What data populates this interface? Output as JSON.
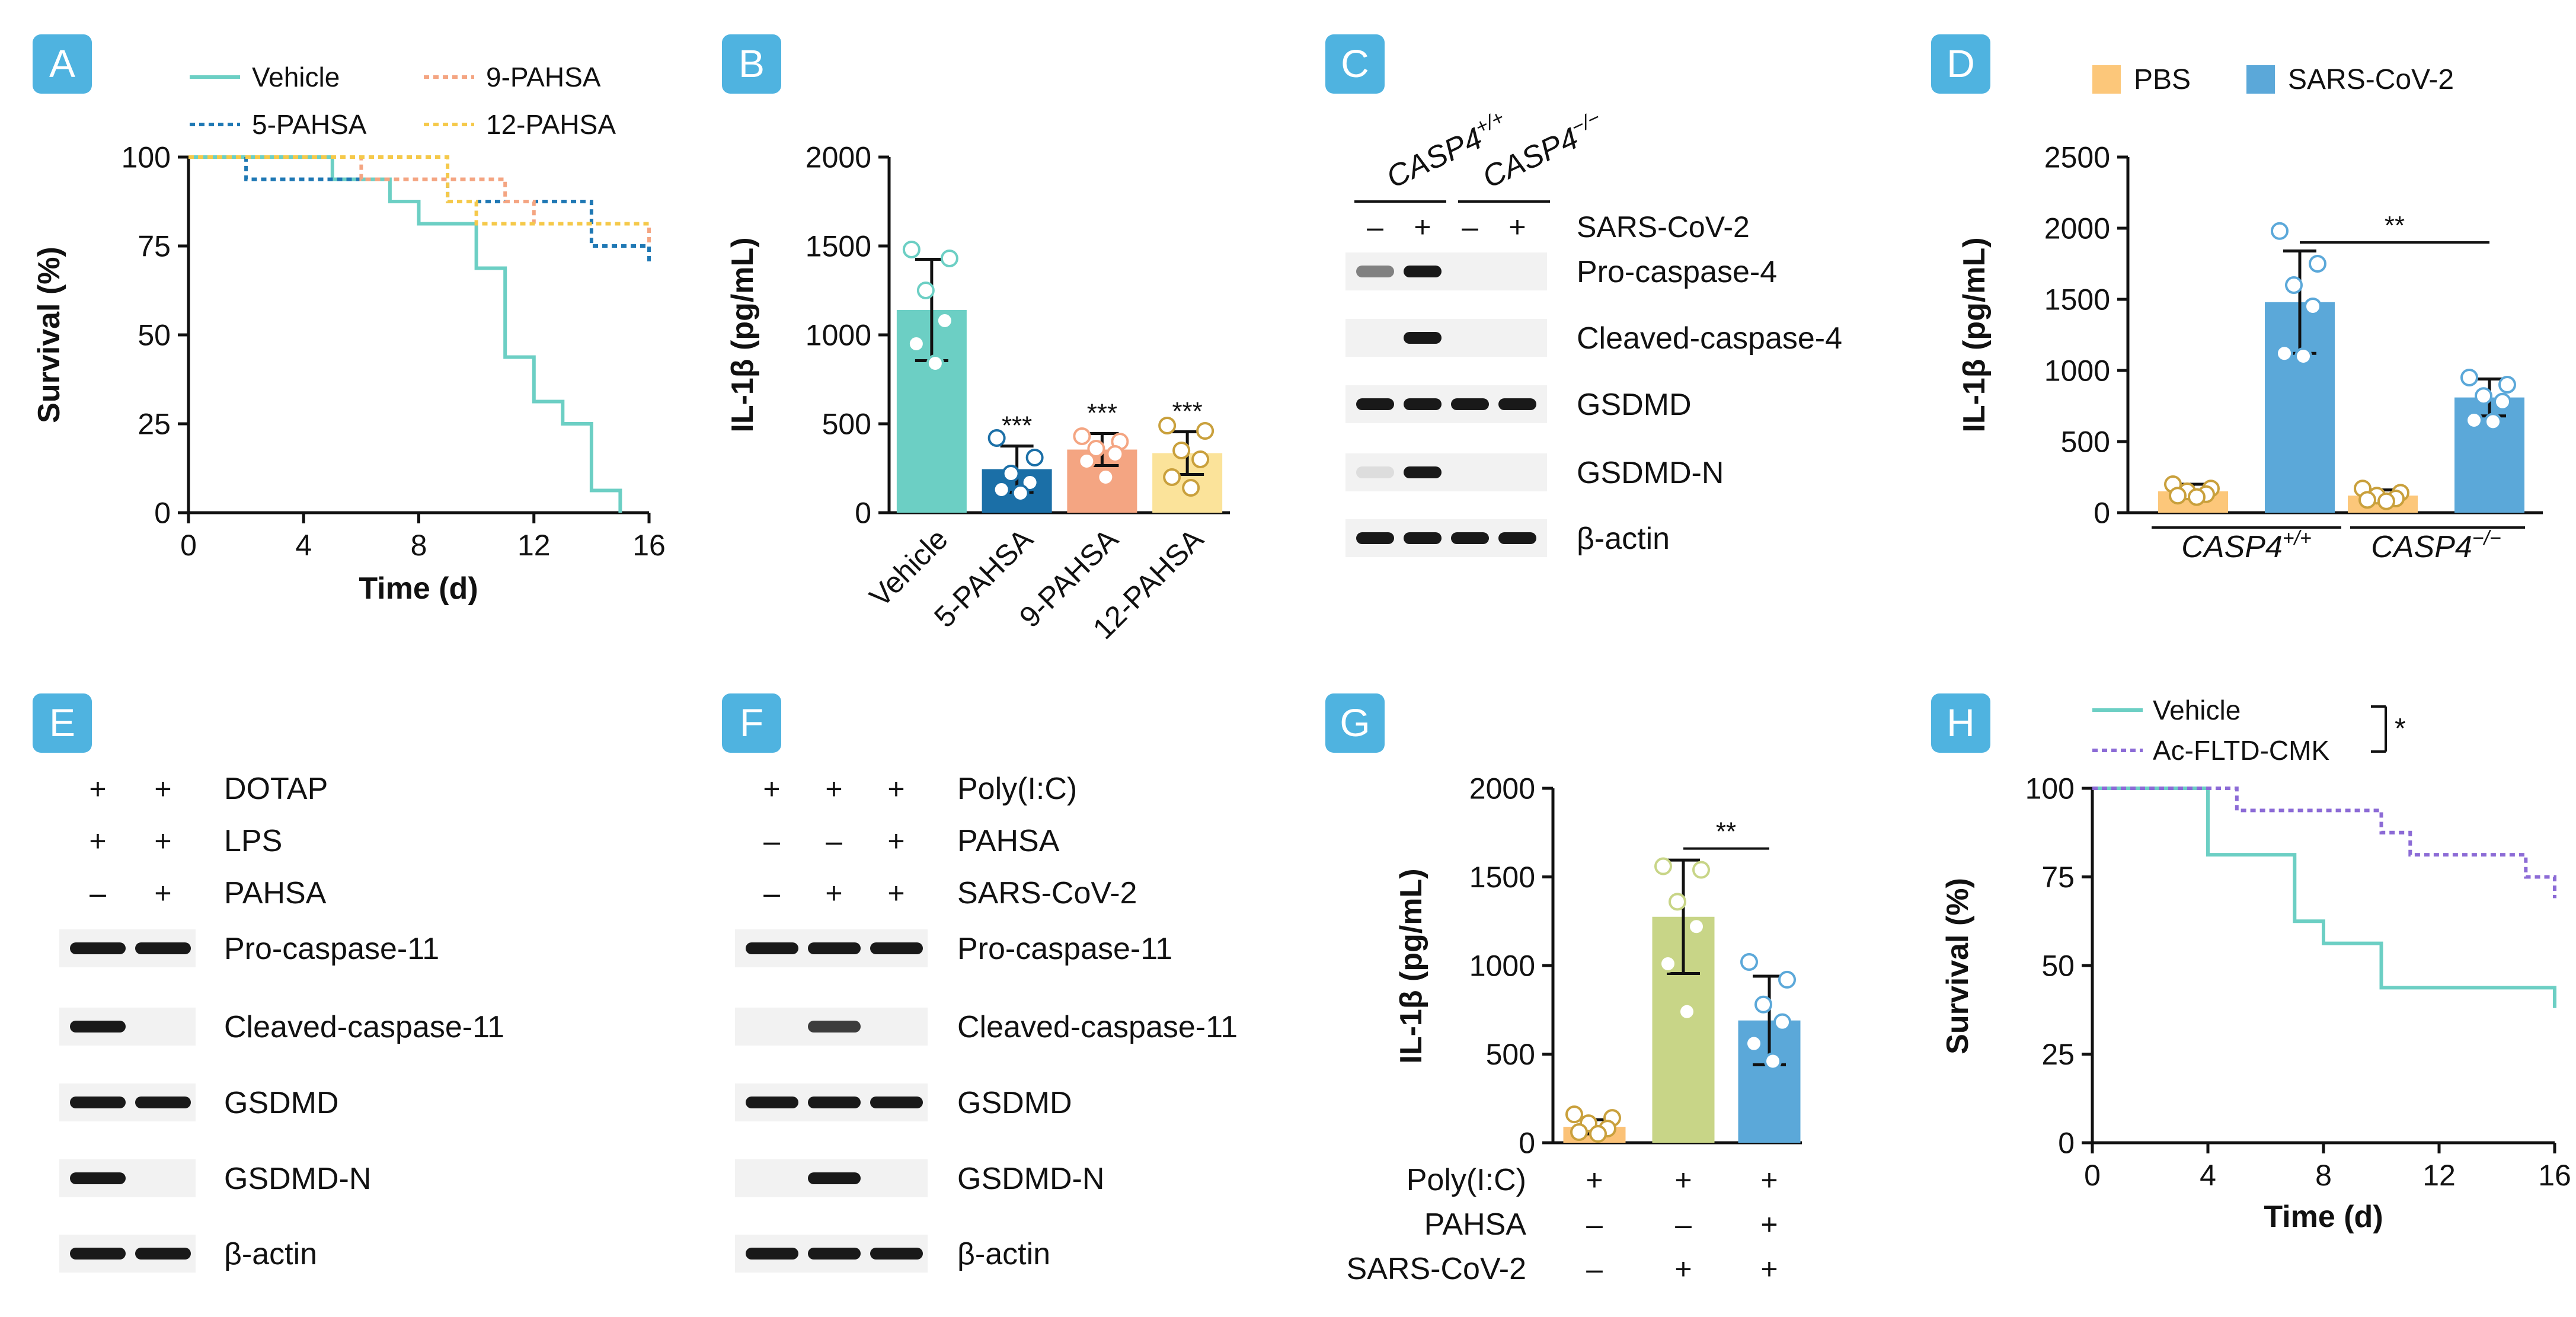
{
  "colors": {
    "teal": "#6ccfc4",
    "blue": "#1f78b4",
    "salmon": "#f4a582",
    "yellow": "#fbe39a",
    "dark_blue": "#1b6fa7",
    "pbs": "#fcc77a",
    "sars": "#5ba8d9",
    "poly": "#fbc277",
    "green": "#c8d587",
    "purple": "#8c6bd6",
    "badge": "#4fb3e0"
  },
  "panels": {
    "A": {
      "badge": "A",
      "chart_data": {
        "type": "line",
        "title": "",
        "xlabel": "Time (d)",
        "ylabel": "Survival (%)",
        "xlim": [
          0,
          16
        ],
        "ylim": [
          0,
          100
        ],
        "xticks": [
          "0",
          "4",
          "8",
          "12",
          "16"
        ],
        "yticks": [
          "0",
          "25",
          "50",
          "75",
          "100"
        ],
        "legend_position": "top",
        "series": [
          {
            "name": "Vehicle",
            "style": "solid",
            "color": "#6ccfc4",
            "steps": [
              [
                0,
                100
              ],
              [
                5,
                100
              ],
              [
                5,
                93.75
              ],
              [
                7,
                93.75
              ],
              [
                7,
                87.5
              ],
              [
                8,
                87.5
              ],
              [
                8,
                81.25
              ],
              [
                10,
                81.25
              ],
              [
                10,
                68.75
              ],
              [
                11,
                68.75
              ],
              [
                11,
                43.75
              ],
              [
                12,
                43.75
              ],
              [
                12,
                31.25
              ],
              [
                13,
                31.25
              ],
              [
                13,
                25
              ],
              [
                14,
                25
              ],
              [
                14,
                6.25
              ],
              [
                15,
                6.25
              ],
              [
                15,
                0
              ]
            ]
          },
          {
            "name": "5-PAHSA",
            "style": "dotted",
            "color": "#1f78b4",
            "steps": [
              [
                0,
                100
              ],
              [
                2,
                100
              ],
              [
                2,
                93.75
              ],
              [
                9,
                93.75
              ],
              [
                9,
                87.5
              ],
              [
                14,
                87.5
              ],
              [
                14,
                75
              ],
              [
                16,
                75
              ],
              [
                16,
                70
              ]
            ]
          },
          {
            "name": "9-PAHSA",
            "style": "dotted",
            "color": "#f4a582",
            "steps": [
              [
                0,
                100
              ],
              [
                6,
                100
              ],
              [
                6,
                93.75
              ],
              [
                11,
                93.75
              ],
              [
                11,
                87.5
              ],
              [
                12,
                87.5
              ],
              [
                12,
                81.25
              ],
              [
                16,
                81.25
              ],
              [
                16,
                76
              ]
            ]
          },
          {
            "name": "12-PAHSA",
            "style": "dotted",
            "color": "#f5c94a",
            "steps": [
              [
                0,
                100
              ],
              [
                9,
                100
              ],
              [
                9,
                87.5
              ],
              [
                10,
                87.5
              ],
              [
                10,
                81.25
              ],
              [
                16,
                81.25
              ]
            ]
          }
        ]
      }
    },
    "B": {
      "badge": "B",
      "chart_data": {
        "type": "bar",
        "title": "",
        "ylabel": "IL-1β (pg/mL)",
        "ylim": [
          0,
          2000
        ],
        "yticks": [
          "0",
          "500",
          "1000",
          "1500",
          "2000"
        ],
        "categories": [
          "Vehicle",
          "5-PAHSA",
          "9-PAHSA",
          "12-PAHSA"
        ],
        "values": [
          1140,
          245,
          355,
          335
        ],
        "errors": [
          285,
          130,
          90,
          120
        ],
        "points": [
          [
            1480,
            1430,
            1250,
            1080,
            950,
            840
          ],
          [
            420,
            310,
            220,
            170,
            130,
            110
          ],
          [
            430,
            400,
            360,
            330,
            290,
            200
          ],
          [
            490,
            460,
            350,
            300,
            200,
            140
          ]
        ],
        "annotations": [
          "",
          "***",
          "***",
          "***"
        ],
        "colors": [
          "#6ccfc4",
          "#1b6fa7",
          "#f4a582",
          "#fbe39a"
        ]
      }
    },
    "C": {
      "badge": "C",
      "groups": [
        "CASP4+/+",
        "CASP4−/−"
      ],
      "group_base": "CASP4",
      "group_sups": [
        "+/+",
        "−/−"
      ],
      "treatment_label": "SARS-CoV-2",
      "treatment_signs": [
        "–",
        "+",
        "–",
        "+"
      ],
      "blots": [
        "Pro-caspase-4",
        "Cleaved-caspase-4",
        "GSDMD",
        "GSDMD-N",
        "β-actin"
      ],
      "band_intensity": [
        [
          0.55,
          1,
          0,
          0
        ],
        [
          0,
          1,
          0,
          0
        ],
        [
          1,
          1,
          1,
          1
        ],
        [
          0.15,
          1,
          0,
          0
        ],
        [
          1,
          1,
          1,
          1
        ]
      ]
    },
    "D": {
      "badge": "D",
      "chart_data": {
        "type": "bar",
        "title": "",
        "ylabel": "IL-1β (pg/mL)",
        "ylim": [
          0,
          2500
        ],
        "yticks": [
          "0",
          "500",
          "1000",
          "1500",
          "2000",
          "2500"
        ],
        "legend_position": "top",
        "groups": [
          "CASP4+/+",
          "CASP4−/−"
        ],
        "group_base": "CASP4",
        "group_sups": [
          "+/+",
          "−/−"
        ],
        "series": [
          {
            "name": "PBS",
            "color": "#fcc77a",
            "values": [
              150,
              120
            ],
            "errors": [
              50,
              40
            ],
            "points": [
              [
                200,
                170,
                150,
                130,
                120,
                110
              ],
              [
                170,
                140,
                120,
                100,
                90,
                80
              ]
            ]
          },
          {
            "name": "SARS-CoV-2",
            "color": "#5ba8d9",
            "values": [
              1480,
              810
            ],
            "errors": [
              360,
              130
            ],
            "points": [
              [
                1980,
                1750,
                1600,
                1450,
                1120,
                1100
              ],
              [
                950,
                900,
                820,
                780,
                650,
                640
              ]
            ]
          }
        ],
        "annotation": "**"
      }
    },
    "E": {
      "badge": "E",
      "rows": [
        {
          "label": "DOTAP",
          "signs": [
            "+",
            "+"
          ]
        },
        {
          "label": "LPS",
          "signs": [
            "+",
            "+"
          ]
        },
        {
          "label": "PAHSA",
          "signs": [
            "–",
            "+"
          ]
        }
      ],
      "blots": [
        "Pro-caspase-11",
        "Cleaved-caspase-11",
        "GSDMD",
        "GSDMD-N",
        "β-actin"
      ],
      "band_intensity": [
        [
          1,
          1
        ],
        [
          1,
          0
        ],
        [
          1,
          1
        ],
        [
          1,
          0
        ],
        [
          1,
          1
        ]
      ]
    },
    "F": {
      "badge": "F",
      "rows": [
        {
          "label": "Poly(I:C)",
          "signs": [
            "+",
            "+",
            "+"
          ]
        },
        {
          "label": "PAHSA",
          "signs": [
            "–",
            "–",
            "+"
          ]
        },
        {
          "label": "SARS-CoV-2",
          "signs": [
            "–",
            "+",
            "+"
          ]
        }
      ],
      "blots": [
        "Pro-caspase-11",
        "Cleaved-caspase-11",
        "GSDMD",
        "GSDMD-N",
        "β-actin"
      ],
      "band_intensity": [
        [
          1,
          1,
          1
        ],
        [
          0,
          0.85,
          0
        ],
        [
          1,
          1,
          1
        ],
        [
          0,
          1,
          0
        ],
        [
          1,
          1,
          1
        ]
      ]
    },
    "G": {
      "badge": "G",
      "chart_data": {
        "type": "bar",
        "title": "",
        "ylabel": "IL-1β (pg/mL)",
        "ylim": [
          0,
          2000
        ],
        "yticks": [
          "0",
          "500",
          "1000",
          "1500",
          "2000"
        ],
        "values": [
          90,
          1275,
          690
        ],
        "errors": [
          40,
          320,
          250
        ],
        "points": [
          [
            160,
            140,
            110,
            80,
            60,
            50
          ],
          [
            1560,
            1540,
            1360,
            1220,
            1010,
            740
          ],
          [
            1020,
            920,
            780,
            680,
            560,
            460
          ]
        ],
        "colors": [
          "#fbc277",
          "#c8d587",
          "#5ba8d9"
        ],
        "rows": [
          {
            "label": "Poly(I:C)",
            "signs": [
              "+",
              "+",
              "+"
            ]
          },
          {
            "label": "PAHSA",
            "signs": [
              "–",
              "–",
              "+"
            ]
          },
          {
            "label": "SARS-CoV-2",
            "signs": [
              "–",
              "+",
              "+"
            ]
          }
        ],
        "annotation": "**"
      }
    },
    "H": {
      "badge": "H",
      "chart_data": {
        "type": "line",
        "title": "",
        "xlabel": "Time (d)",
        "ylabel": "Survival (%)",
        "xlim": [
          0,
          16
        ],
        "ylim": [
          0,
          100
        ],
        "xticks": [
          "0",
          "4",
          "8",
          "12",
          "16"
        ],
        "yticks": [
          "0",
          "25",
          "50",
          "75",
          "100"
        ],
        "legend_position": "top",
        "significance": "*",
        "series": [
          {
            "name": "Vehicle",
            "style": "solid",
            "color": "#6ccfc4",
            "steps": [
              [
                0,
                100
              ],
              [
                4,
                100
              ],
              [
                4,
                81.25
              ],
              [
                7,
                81.25
              ],
              [
                7,
                62.5
              ],
              [
                8,
                62.5
              ],
              [
                8,
                56.25
              ],
              [
                10,
                56.25
              ],
              [
                10,
                43.75
              ],
              [
                16,
                43.75
              ],
              [
                16,
                38
              ]
            ]
          },
          {
            "name": "Ac-FLTD-CMK",
            "style": "dotted",
            "color": "#8c6bd6",
            "steps": [
              [
                0,
                100
              ],
              [
                5,
                100
              ],
              [
                5,
                93.75
              ],
              [
                10,
                93.75
              ],
              [
                10,
                87.5
              ],
              [
                11,
                87.5
              ],
              [
                11,
                81.25
              ],
              [
                15,
                81.25
              ],
              [
                15,
                75
              ],
              [
                16,
                75
              ],
              [
                16,
                69
              ]
            ]
          }
        ]
      }
    }
  }
}
